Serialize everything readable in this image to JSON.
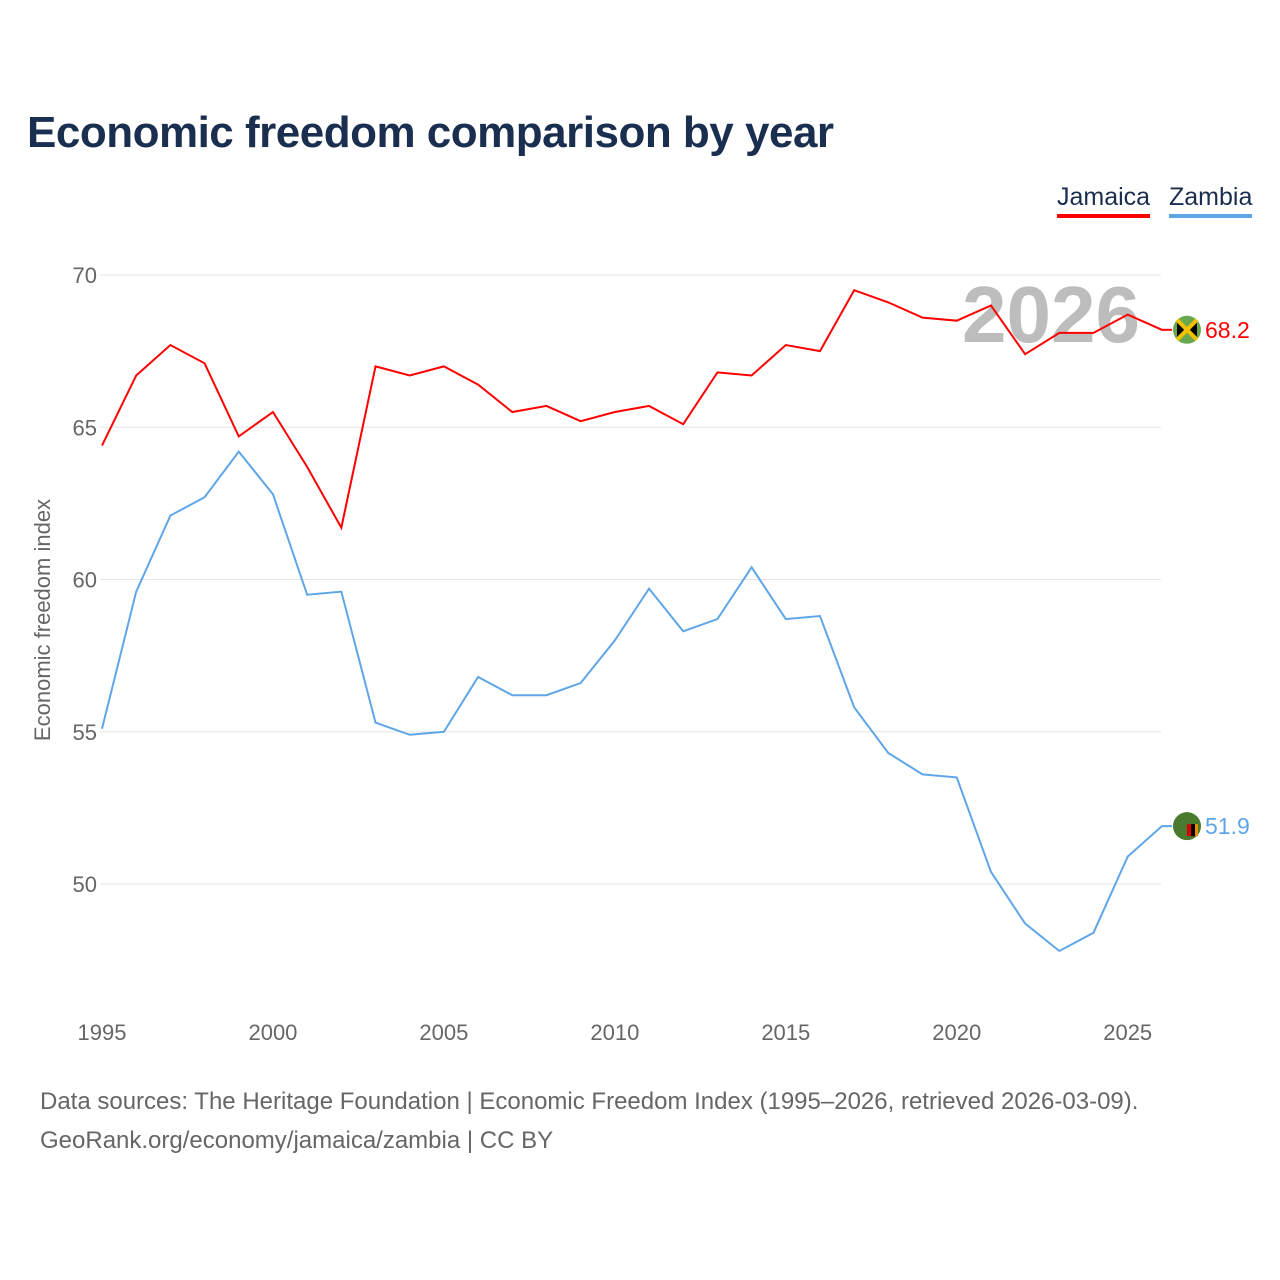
{
  "title": "Economic freedom comparison by year",
  "footer": {
    "line1": "Data sources: The Heritage Foundation | Economic Freedom Index (1995–2026, retrieved 2026-03-09).",
    "line2": "GeoRank.org/economy/jamaica/zambia | CC BY"
  },
  "chart_data": {
    "type": "line",
    "title": "Economic freedom comparison by year",
    "ylabel": "Economic freedom index",
    "xlabel": "",
    "watermark": "2026",
    "ylim": [
      46,
      70
    ],
    "yticks": [
      50,
      55,
      60,
      65,
      70
    ],
    "xticks": [
      1995,
      2000,
      2005,
      2010,
      2015,
      2020,
      2025
    ],
    "legend": "top-right",
    "x": [
      1995,
      1996,
      1997,
      1998,
      1999,
      2000,
      2001,
      2002,
      2003,
      2004,
      2005,
      2006,
      2007,
      2008,
      2009,
      2010,
      2011,
      2012,
      2013,
      2014,
      2015,
      2016,
      2017,
      2018,
      2019,
      2020,
      2021,
      2022,
      2023,
      2024,
      2025,
      2026
    ],
    "series": [
      {
        "name": "Jamaica",
        "color": "#ff0000",
        "end_label": "68.2",
        "values": [
          64.4,
          66.7,
          67.7,
          67.1,
          64.7,
          65.5,
          63.7,
          61.7,
          67.0,
          66.7,
          67.0,
          66.4,
          65.5,
          65.7,
          65.2,
          65.5,
          65.7,
          65.1,
          66.8,
          66.7,
          67.7,
          67.5,
          69.5,
          69.1,
          68.6,
          68.5,
          69.0,
          67.4,
          68.1,
          68.1,
          68.7,
          68.2
        ]
      },
      {
        "name": "Zambia",
        "color": "#5fa6e8",
        "end_label": "51.9",
        "values": [
          55.1,
          59.6,
          62.1,
          62.7,
          64.2,
          62.8,
          59.5,
          59.6,
          55.3,
          54.9,
          55.0,
          56.8,
          56.2,
          56.2,
          56.6,
          58.0,
          59.7,
          58.3,
          58.7,
          60.4,
          58.7,
          58.8,
          55.8,
          54.3,
          53.6,
          53.5,
          50.4,
          48.7,
          47.8,
          48.4,
          50.9,
          51.9
        ]
      }
    ]
  }
}
